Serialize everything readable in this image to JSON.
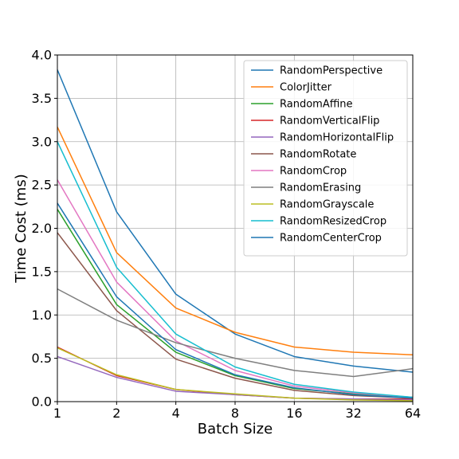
{
  "chart_data": {
    "type": "line",
    "title": "",
    "xlabel": "Batch Size",
    "ylabel": "Time Cost (ms)",
    "x": [
      1,
      2,
      4,
      8,
      16,
      32,
      64
    ],
    "x_tick_labels": [
      "1",
      "2",
      "4",
      "8",
      "16",
      "32",
      "64"
    ],
    "x_scale": "log2",
    "ylim": [
      0.0,
      4.0
    ],
    "y_ticks": [
      0.0,
      0.5,
      1.0,
      1.5,
      2.0,
      2.5,
      3.0,
      3.5,
      4.0
    ],
    "y_tick_labels": [
      "0.0",
      "0.5",
      "1.0",
      "1.5",
      "2.0",
      "2.5",
      "3.0",
      "3.5",
      "4.0"
    ],
    "grid": true,
    "legend_position": "top-right",
    "series": [
      {
        "name": "RandomPerspective",
        "color": "#1f77b4",
        "values": [
          3.83,
          2.19,
          1.24,
          0.78,
          0.52,
          0.41,
          0.34
        ]
      },
      {
        "name": "ColorJitter",
        "color": "#ff7f0e",
        "values": [
          3.17,
          1.72,
          1.08,
          0.8,
          0.63,
          0.57,
          0.54
        ]
      },
      {
        "name": "RandomAffine",
        "color": "#2ca02c",
        "values": [
          2.22,
          1.12,
          0.57,
          0.3,
          0.15,
          0.09,
          0.05
        ]
      },
      {
        "name": "RandomVerticalFlip",
        "color": "#d62728",
        "values": [
          0.63,
          0.3,
          0.14,
          0.08,
          0.04,
          0.03,
          0.03
        ]
      },
      {
        "name": "RandomHorizontalFlip",
        "color": "#9467bd",
        "values": [
          0.52,
          0.28,
          0.12,
          0.08,
          0.04,
          0.03,
          0.02
        ]
      },
      {
        "name": "RandomRotate",
        "color": "#8c564b",
        "values": [
          1.95,
          1.05,
          0.49,
          0.27,
          0.13,
          0.07,
          0.04
        ]
      },
      {
        "name": "RandomCrop",
        "color": "#e377c2",
        "values": [
          2.56,
          1.38,
          0.7,
          0.36,
          0.18,
          0.1,
          0.05
        ]
      },
      {
        "name": "RandomErasing",
        "color": "#7f7f7f",
        "values": [
          1.3,
          0.94,
          0.68,
          0.5,
          0.36,
          0.29,
          0.38
        ]
      },
      {
        "name": "RandomGrayscale",
        "color": "#bcbd22",
        "values": [
          0.62,
          0.31,
          0.14,
          0.09,
          0.04,
          0.02,
          0.01
        ]
      },
      {
        "name": "RandomResizedCrop",
        "color": "#17becf",
        "values": [
          3.0,
          1.55,
          0.78,
          0.4,
          0.2,
          0.11,
          0.05
        ]
      },
      {
        "name": "RandomCenterCrop",
        "color": "#1f77b4",
        "values": [
          2.29,
          1.21,
          0.6,
          0.31,
          0.16,
          0.08,
          0.04
        ]
      }
    ]
  }
}
